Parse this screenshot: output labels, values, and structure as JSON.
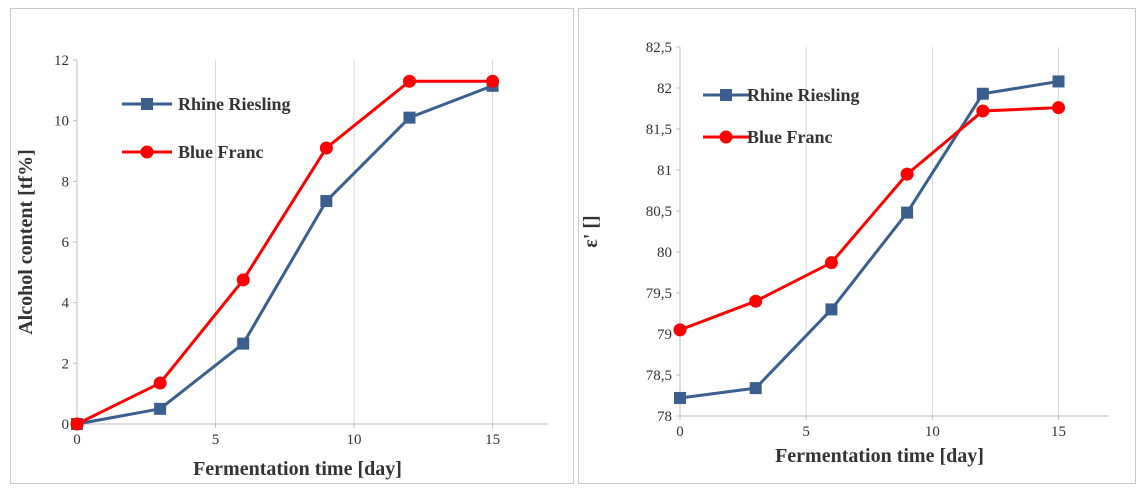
{
  "chart_data": [
    {
      "type": "line",
      "title": "",
      "xlabel": "Fermentation time [day]",
      "ylabel": "Alcohol content [tf%]",
      "xlim": [
        0,
        17
      ],
      "ylim": [
        0,
        12
      ],
      "x_ticks": [
        "0",
        "5",
        "10",
        "15"
      ],
      "y_ticks": [
        "0",
        "2",
        "4",
        "6",
        "8",
        "10",
        "12"
      ],
      "grid": "vertical",
      "legend": "top-left",
      "x": [
        0,
        3,
        6,
        9,
        12,
        15
      ],
      "series": [
        {
          "name": "Rhine Riesling",
          "color": "#3a5f8f",
          "marker": "square",
          "values": [
            0,
            0.5,
            2.65,
            7.35,
            10.1,
            11.15
          ]
        },
        {
          "name": "Blue Franc",
          "color": "#ff0000",
          "marker": "circle",
          "values": [
            0,
            1.35,
            4.75,
            9.1,
            11.3,
            11.3
          ]
        }
      ]
    },
    {
      "type": "line",
      "title": "",
      "xlabel": "Fermentation time [day]",
      "ylabel": "ε' []",
      "xlim": [
        0,
        17
      ],
      "ylim": [
        78,
        82.5
      ],
      "x_ticks": [
        "0",
        "5",
        "10",
        "15"
      ],
      "y_ticks": [
        "78",
        "78,5",
        "79",
        "79,5",
        "80",
        "80,5",
        "81",
        "81,5",
        "82",
        "82,5"
      ],
      "grid": "vertical",
      "legend": "top-left",
      "x": [
        0,
        3,
        6,
        9,
        12,
        15
      ],
      "series": [
        {
          "name": "Rhine Riesling",
          "color": "#3a5f8f",
          "marker": "square",
          "values": [
            78.22,
            78.34,
            79.3,
            80.48,
            81.93,
            82.08
          ]
        },
        {
          "name": "Blue Franc",
          "color": "#ff0000",
          "marker": "circle",
          "values": [
            79.05,
            79.4,
            79.87,
            80.95,
            81.72,
            81.76
          ]
        }
      ]
    }
  ]
}
